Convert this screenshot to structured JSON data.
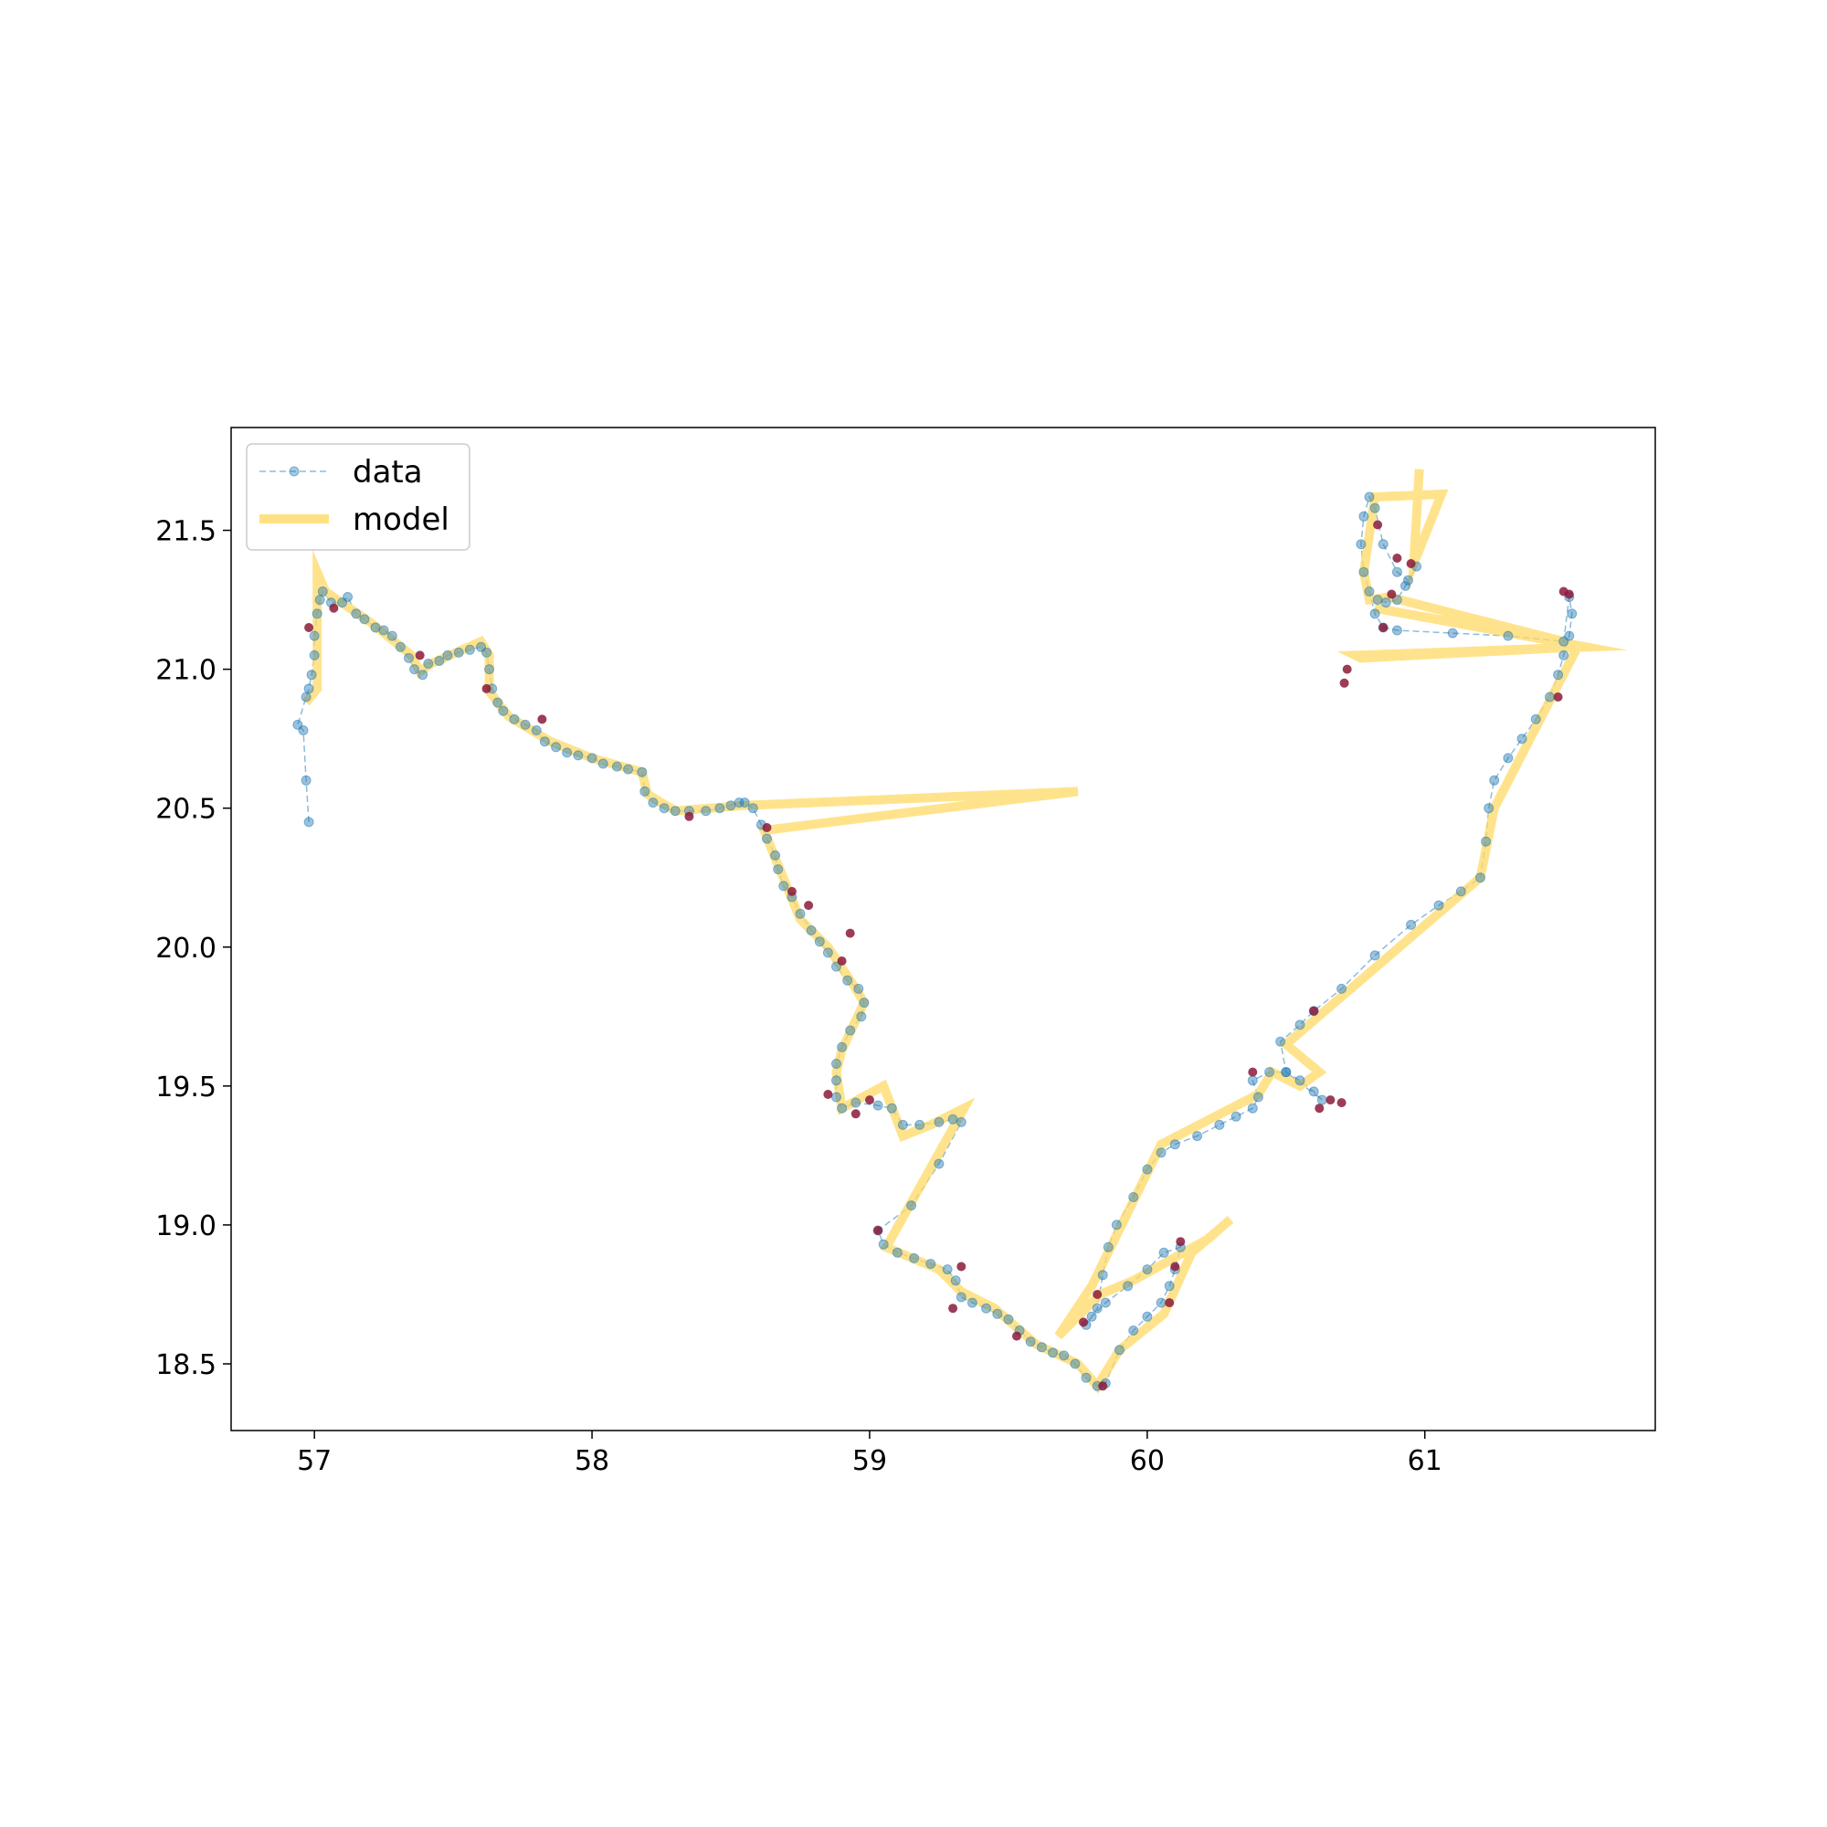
{
  "chart_data": {
    "type": "line",
    "title": "",
    "xlabel": "",
    "ylabel": "",
    "xlim": [
      56.7,
      61.83
    ],
    "ylim": [
      18.26,
      21.87
    ],
    "xticks": [
      57,
      58,
      59,
      60,
      61
    ],
    "yticks": [
      18.5,
      19.0,
      19.5,
      20.0,
      20.5,
      21.0,
      21.5
    ],
    "xtick_labels": [
      "57",
      "58",
      "59",
      "60",
      "61"
    ],
    "ytick_labels": [
      "18.5",
      "19.0",
      "19.5",
      "20.0",
      "20.5",
      "21.0",
      "21.5"
    ],
    "legend": {
      "position": "upper-left",
      "entries": [
        "data",
        "model"
      ]
    },
    "colors": {
      "data": "#1f77b4",
      "model": "#ffd966",
      "outlier": "#8b1a3a"
    },
    "series": [
      {
        "name": "data",
        "style": "dashed-line-with-markers",
        "points": [
          [
            56.98,
            20.45
          ],
          [
            56.97,
            20.6
          ],
          [
            56.96,
            20.78
          ],
          [
            56.94,
            20.8
          ],
          [
            56.97,
            20.9
          ],
          [
            56.98,
            20.93
          ],
          [
            56.99,
            20.98
          ],
          [
            57.0,
            21.05
          ],
          [
            57.0,
            21.12
          ],
          [
            57.01,
            21.2
          ],
          [
            57.02,
            21.25
          ],
          [
            57.03,
            21.28
          ],
          [
            57.06,
            21.24
          ],
          [
            57.1,
            21.24
          ],
          [
            57.12,
            21.26
          ],
          [
            57.15,
            21.2
          ],
          [
            57.18,
            21.18
          ],
          [
            57.22,
            21.15
          ],
          [
            57.25,
            21.14
          ],
          [
            57.28,
            21.12
          ],
          [
            57.31,
            21.08
          ],
          [
            57.34,
            21.04
          ],
          [
            57.36,
            21.0
          ],
          [
            57.39,
            20.98
          ],
          [
            57.41,
            21.02
          ],
          [
            57.45,
            21.03
          ],
          [
            57.48,
            21.05
          ],
          [
            57.52,
            21.06
          ],
          [
            57.56,
            21.07
          ],
          [
            57.6,
            21.08
          ],
          [
            57.62,
            21.06
          ],
          [
            57.63,
            21.0
          ],
          [
            57.64,
            20.93
          ],
          [
            57.66,
            20.88
          ],
          [
            57.68,
            20.85
          ],
          [
            57.72,
            20.82
          ],
          [
            57.76,
            20.8
          ],
          [
            57.8,
            20.78
          ],
          [
            57.83,
            20.74
          ],
          [
            57.87,
            20.72
          ],
          [
            57.91,
            20.7
          ],
          [
            57.95,
            20.69
          ],
          [
            58.0,
            20.68
          ],
          [
            58.04,
            20.66
          ],
          [
            58.09,
            20.65
          ],
          [
            58.13,
            20.64
          ],
          [
            58.18,
            20.63
          ],
          [
            58.19,
            20.56
          ],
          [
            58.22,
            20.52
          ],
          [
            58.26,
            20.5
          ],
          [
            58.3,
            20.49
          ],
          [
            58.35,
            20.49
          ],
          [
            58.41,
            20.49
          ],
          [
            58.46,
            20.5
          ],
          [
            58.5,
            20.51
          ],
          [
            58.53,
            20.52
          ],
          [
            58.55,
            20.52
          ],
          [
            58.58,
            20.5
          ],
          [
            58.61,
            20.44
          ],
          [
            58.63,
            20.39
          ],
          [
            58.66,
            20.33
          ],
          [
            58.67,
            20.28
          ],
          [
            58.69,
            20.22
          ],
          [
            58.72,
            20.18
          ],
          [
            58.75,
            20.12
          ],
          [
            58.79,
            20.06
          ],
          [
            58.82,
            20.02
          ],
          [
            58.85,
            19.98
          ],
          [
            58.88,
            19.93
          ],
          [
            58.92,
            19.88
          ],
          [
            58.96,
            19.85
          ],
          [
            58.98,
            19.8
          ],
          [
            58.97,
            19.75
          ],
          [
            58.93,
            19.7
          ],
          [
            58.9,
            19.64
          ],
          [
            58.88,
            19.58
          ],
          [
            58.88,
            19.52
          ],
          [
            58.88,
            19.46
          ],
          [
            58.9,
            19.42
          ],
          [
            58.95,
            19.44
          ],
          [
            59.03,
            19.43
          ],
          [
            59.08,
            19.42
          ],
          [
            59.12,
            19.36
          ],
          [
            59.18,
            19.36
          ],
          [
            59.25,
            19.37
          ],
          [
            59.3,
            19.38
          ],
          [
            59.33,
            19.37
          ],
          [
            59.25,
            19.22
          ],
          [
            59.15,
            19.07
          ],
          [
            59.03,
            18.98
          ],
          [
            59.05,
            18.93
          ],
          [
            59.1,
            18.9
          ],
          [
            59.16,
            18.88
          ],
          [
            59.22,
            18.86
          ],
          [
            59.28,
            18.84
          ],
          [
            59.31,
            18.8
          ],
          [
            59.33,
            18.74
          ],
          [
            59.37,
            18.72
          ],
          [
            59.42,
            18.7
          ],
          [
            59.46,
            18.68
          ],
          [
            59.5,
            18.66
          ],
          [
            59.54,
            18.62
          ],
          [
            59.58,
            18.58
          ],
          [
            59.62,
            18.56
          ],
          [
            59.66,
            18.54
          ],
          [
            59.7,
            18.53
          ],
          [
            59.74,
            18.5
          ],
          [
            59.78,
            18.45
          ],
          [
            59.82,
            18.42
          ],
          [
            59.85,
            18.43
          ],
          [
            59.9,
            18.55
          ],
          [
            59.95,
            18.62
          ],
          [
            60.0,
            18.67
          ],
          [
            60.05,
            18.72
          ],
          [
            60.08,
            18.78
          ],
          [
            60.1,
            18.84
          ],
          [
            60.12,
            18.92
          ],
          [
            60.06,
            18.9
          ],
          [
            60.0,
            18.84
          ],
          [
            59.93,
            18.78
          ],
          [
            59.85,
            18.72
          ],
          [
            59.8,
            18.67
          ],
          [
            59.78,
            18.64
          ],
          [
            59.82,
            18.7
          ],
          [
            59.84,
            18.82
          ],
          [
            59.86,
            18.92
          ],
          [
            59.89,
            19.0
          ],
          [
            59.95,
            19.1
          ],
          [
            60.0,
            19.2
          ],
          [
            60.05,
            19.26
          ],
          [
            60.1,
            19.29
          ],
          [
            60.18,
            19.32
          ],
          [
            60.26,
            19.36
          ],
          [
            60.32,
            19.39
          ],
          [
            60.38,
            19.42
          ],
          [
            60.4,
            19.46
          ],
          [
            60.38,
            19.52
          ],
          [
            60.44,
            19.55
          ],
          [
            60.5,
            19.55
          ],
          [
            60.55,
            19.52
          ],
          [
            60.6,
            19.48
          ],
          [
            60.63,
            19.45
          ],
          [
            60.5,
            19.55
          ],
          [
            60.48,
            19.66
          ],
          [
            60.55,
            19.72
          ],
          [
            60.6,
            19.77
          ],
          [
            60.7,
            19.85
          ],
          [
            60.82,
            19.97
          ],
          [
            60.95,
            20.08
          ],
          [
            61.05,
            20.15
          ],
          [
            61.13,
            20.2
          ],
          [
            61.2,
            20.25
          ],
          [
            61.22,
            20.38
          ],
          [
            61.23,
            20.5
          ],
          [
            61.25,
            20.6
          ],
          [
            61.3,
            20.68
          ],
          [
            61.35,
            20.75
          ],
          [
            61.4,
            20.82
          ],
          [
            61.45,
            20.9
          ],
          [
            61.48,
            20.98
          ],
          [
            61.5,
            21.05
          ],
          [
            61.52,
            21.12
          ],
          [
            61.53,
            21.2
          ],
          [
            61.52,
            21.26
          ],
          [
            61.5,
            21.1
          ],
          [
            61.3,
            21.12
          ],
          [
            61.1,
            21.13
          ],
          [
            60.9,
            21.14
          ],
          [
            60.85,
            21.15
          ],
          [
            60.82,
            21.2
          ],
          [
            60.8,
            21.28
          ],
          [
            60.78,
            21.35
          ],
          [
            60.77,
            21.45
          ],
          [
            60.78,
            21.55
          ],
          [
            60.8,
            21.62
          ],
          [
            60.82,
            21.58
          ],
          [
            60.85,
            21.45
          ],
          [
            60.9,
            21.35
          ],
          [
            60.94,
            21.32
          ],
          [
            60.97,
            21.37
          ],
          [
            60.93,
            21.3
          ],
          [
            60.9,
            21.25
          ],
          [
            60.86,
            21.24
          ],
          [
            60.83,
            21.25
          ]
        ]
      },
      {
        "name": "outlier",
        "style": "markers",
        "points": [
          [
            56.98,
            21.15
          ],
          [
            57.07,
            21.22
          ],
          [
            57.38,
            21.05
          ],
          [
            57.62,
            20.93
          ],
          [
            57.82,
            20.82
          ],
          [
            58.35,
            20.47
          ],
          [
            58.63,
            20.43
          ],
          [
            58.72,
            20.2
          ],
          [
            58.78,
            20.15
          ],
          [
            58.93,
            20.05
          ],
          [
            58.9,
            19.95
          ],
          [
            58.85,
            19.47
          ],
          [
            59.0,
            19.45
          ],
          [
            58.95,
            19.4
          ],
          [
            59.03,
            18.98
          ],
          [
            59.33,
            18.85
          ],
          [
            59.3,
            18.7
          ],
          [
            59.53,
            18.6
          ],
          [
            59.77,
            18.65
          ],
          [
            59.82,
            18.75
          ],
          [
            59.84,
            18.42
          ],
          [
            60.12,
            18.94
          ],
          [
            60.1,
            18.85
          ],
          [
            60.08,
            18.72
          ],
          [
            60.38,
            19.55
          ],
          [
            60.62,
            19.42
          ],
          [
            60.66,
            19.45
          ],
          [
            60.7,
            19.44
          ],
          [
            60.6,
            19.77
          ],
          [
            60.72,
            21.0
          ],
          [
            60.71,
            20.95
          ],
          [
            60.85,
            21.15
          ],
          [
            60.83,
            21.52
          ],
          [
            60.9,
            21.4
          ],
          [
            60.95,
            21.38
          ],
          [
            61.48,
            20.9
          ],
          [
            61.5,
            21.28
          ],
          [
            61.52,
            21.27
          ],
          [
            60.88,
            21.27
          ]
        ]
      },
      {
        "name": "model",
        "style": "thick-line",
        "points": [
          [
            56.97,
            20.88
          ],
          [
            57.01,
            20.93
          ],
          [
            57.01,
            21.35
          ],
          [
            57.04,
            21.28
          ],
          [
            57.2,
            21.17
          ],
          [
            57.35,
            21.05
          ],
          [
            57.38,
            20.99
          ],
          [
            57.42,
            21.02
          ],
          [
            57.6,
            21.1
          ],
          [
            57.63,
            21.05
          ],
          [
            57.63,
            20.92
          ],
          [
            57.7,
            20.83
          ],
          [
            57.85,
            20.74
          ],
          [
            58.0,
            20.68
          ],
          [
            58.18,
            20.63
          ],
          [
            58.2,
            20.55
          ],
          [
            58.3,
            20.49
          ],
          [
            58.55,
            20.51
          ],
          [
            59.75,
            20.56
          ],
          [
            58.62,
            20.42
          ],
          [
            58.66,
            20.32
          ],
          [
            58.75,
            20.1
          ],
          [
            58.85,
            20.0
          ],
          [
            58.95,
            19.85
          ],
          [
            58.98,
            19.8
          ],
          [
            58.9,
            19.63
          ],
          [
            58.88,
            19.55
          ],
          [
            58.9,
            19.42
          ],
          [
            59.05,
            19.5
          ],
          [
            59.12,
            19.32
          ],
          [
            59.22,
            19.36
          ],
          [
            59.34,
            19.42
          ],
          [
            59.06,
            18.92
          ],
          [
            59.25,
            18.84
          ],
          [
            59.33,
            18.76
          ],
          [
            59.45,
            18.7
          ],
          [
            59.6,
            18.57
          ],
          [
            59.75,
            18.5
          ],
          [
            59.82,
            18.42
          ],
          [
            59.9,
            18.55
          ],
          [
            60.06,
            18.68
          ],
          [
            60.16,
            18.9
          ],
          [
            60.3,
            19.02
          ],
          [
            60.22,
            18.95
          ],
          [
            59.95,
            18.8
          ],
          [
            59.83,
            18.75
          ],
          [
            59.68,
            18.6
          ],
          [
            59.8,
            18.78
          ],
          [
            60.05,
            19.29
          ],
          [
            60.4,
            19.47
          ],
          [
            60.45,
            19.55
          ],
          [
            60.55,
            19.5
          ],
          [
            60.62,
            19.55
          ],
          [
            60.5,
            19.65
          ],
          [
            61.2,
            20.25
          ],
          [
            61.25,
            20.5
          ],
          [
            61.55,
            21.08
          ],
          [
            60.77,
            21.04
          ],
          [
            60.75,
            21.05
          ],
          [
            61.58,
            21.08
          ],
          [
            60.82,
            21.22
          ],
          [
            61.5,
            21.1
          ],
          [
            60.87,
            21.26
          ],
          [
            60.8,
            21.25
          ],
          [
            60.78,
            21.35
          ],
          [
            60.82,
            21.62
          ],
          [
            61.06,
            21.63
          ],
          [
            60.96,
            21.38
          ],
          [
            60.98,
            21.72
          ]
        ]
      }
    ]
  }
}
